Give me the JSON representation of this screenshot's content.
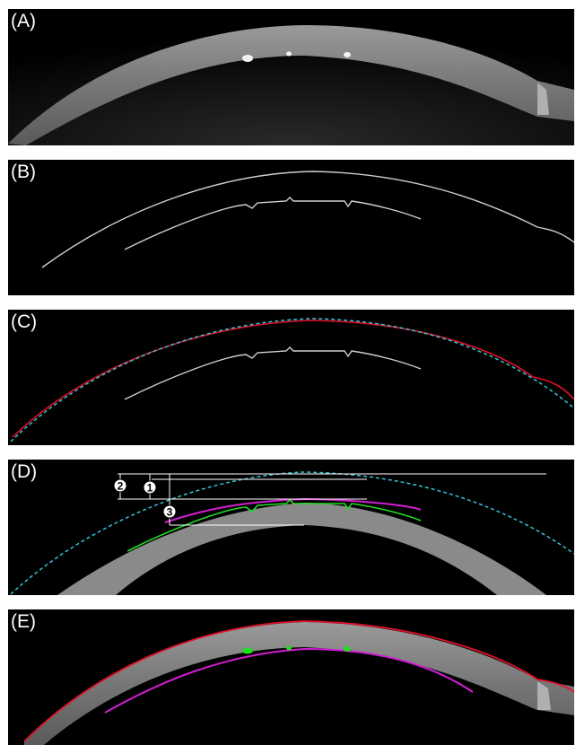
{
  "panels": [
    {
      "label": "(A)",
      "description_key": "raw-oct-scan"
    },
    {
      "label": "(B)",
      "description_key": "segmented-boundaries"
    },
    {
      "label": "(C)",
      "description_key": "fitted-anterior-boundary"
    },
    {
      "label": "(D)",
      "description_key": "measurement-diagram"
    },
    {
      "label": "(E)",
      "description_key": "overlay-on-scan"
    }
  ],
  "markers": [
    "2",
    "1",
    "3"
  ],
  "colors": {
    "background": "#000000",
    "boundary_white": "#d0d0d0",
    "fit_red": "#e0102a",
    "fit_cyan_dashed": "#33c3d6",
    "posterior_magenta": "#d21ed2",
    "posterior_green": "#22dd22",
    "cornea_gray": "#8a8a8a"
  }
}
